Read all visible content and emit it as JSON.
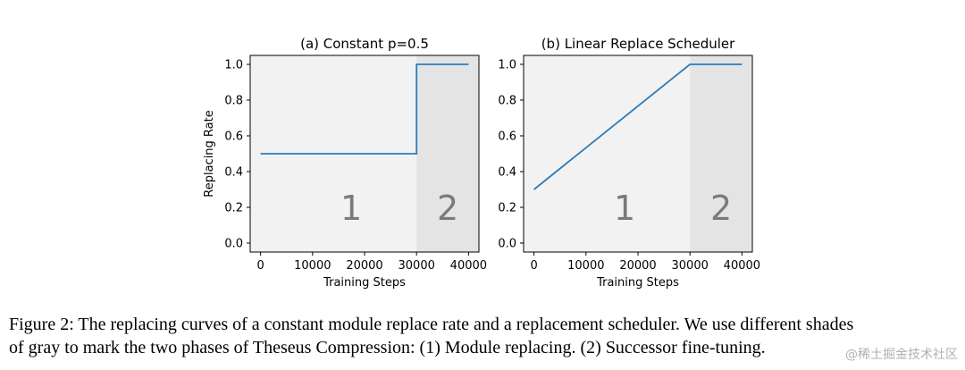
{
  "chart_data": [
    {
      "type": "line",
      "title": "(a) Constant p=0.5",
      "xlabel": "Training Steps",
      "ylabel": "Replacing Rate",
      "xlim": [
        -2000,
        42000
      ],
      "ylim": [
        -0.05,
        1.05
      ],
      "x_ticks": [
        0,
        10000,
        20000,
        30000,
        40000
      ],
      "y_ticks": [
        0.0,
        0.2,
        0.4,
        0.6,
        0.8,
        1.0
      ],
      "x_tick_labels": [
        "0",
        "10000",
        "20000",
        "30000",
        "40000"
      ],
      "y_tick_labels": [
        "0.0",
        "0.2",
        "0.4",
        "0.6",
        "0.8",
        "1.0"
      ],
      "regions": [
        {
          "label": "1",
          "x_start": -2000,
          "x_end": 30000,
          "color": "#f2f2f2"
        },
        {
          "label": "2",
          "x_start": 30000,
          "x_end": 42000,
          "color": "#e4e4e4"
        }
      ],
      "series": [
        {
          "x": [
            0,
            30000,
            30000,
            40000
          ],
          "y": [
            0.5,
            0.5,
            1.0,
            1.0
          ],
          "color": "#2b7bba"
        }
      ],
      "grid": false
    },
    {
      "type": "line",
      "title": "(b) Linear Replace Scheduler",
      "xlabel": "Training Steps",
      "ylabel": "",
      "xlim": [
        -2000,
        42000
      ],
      "ylim": [
        -0.05,
        1.05
      ],
      "x_ticks": [
        0,
        10000,
        20000,
        30000,
        40000
      ],
      "y_ticks": [
        0.0,
        0.2,
        0.4,
        0.6,
        0.8,
        1.0
      ],
      "x_tick_labels": [
        "0",
        "10000",
        "20000",
        "30000",
        "40000"
      ],
      "y_tick_labels": [
        "0.0",
        "0.2",
        "0.4",
        "0.6",
        "0.8",
        "1.0"
      ],
      "regions": [
        {
          "label": "1",
          "x_start": -2000,
          "x_end": 30000,
          "color": "#f2f2f2"
        },
        {
          "label": "2",
          "x_start": 30000,
          "x_end": 42000,
          "color": "#e4e4e4"
        }
      ],
      "series": [
        {
          "x": [
            0,
            30000,
            40000
          ],
          "y": [
            0.3,
            1.0,
            1.0
          ],
          "color": "#2b7bba"
        }
      ],
      "grid": false
    }
  ],
  "caption": {
    "line1": "Figure 2: The replacing curves of a constant module replace rate and a replacement scheduler. We use different shades",
    "line2": "of gray to mark the two phases of Theseus Compression: (1) Module replacing. (2) Successor fine-tuning."
  },
  "watermark": "@稀土掘金技术社区"
}
